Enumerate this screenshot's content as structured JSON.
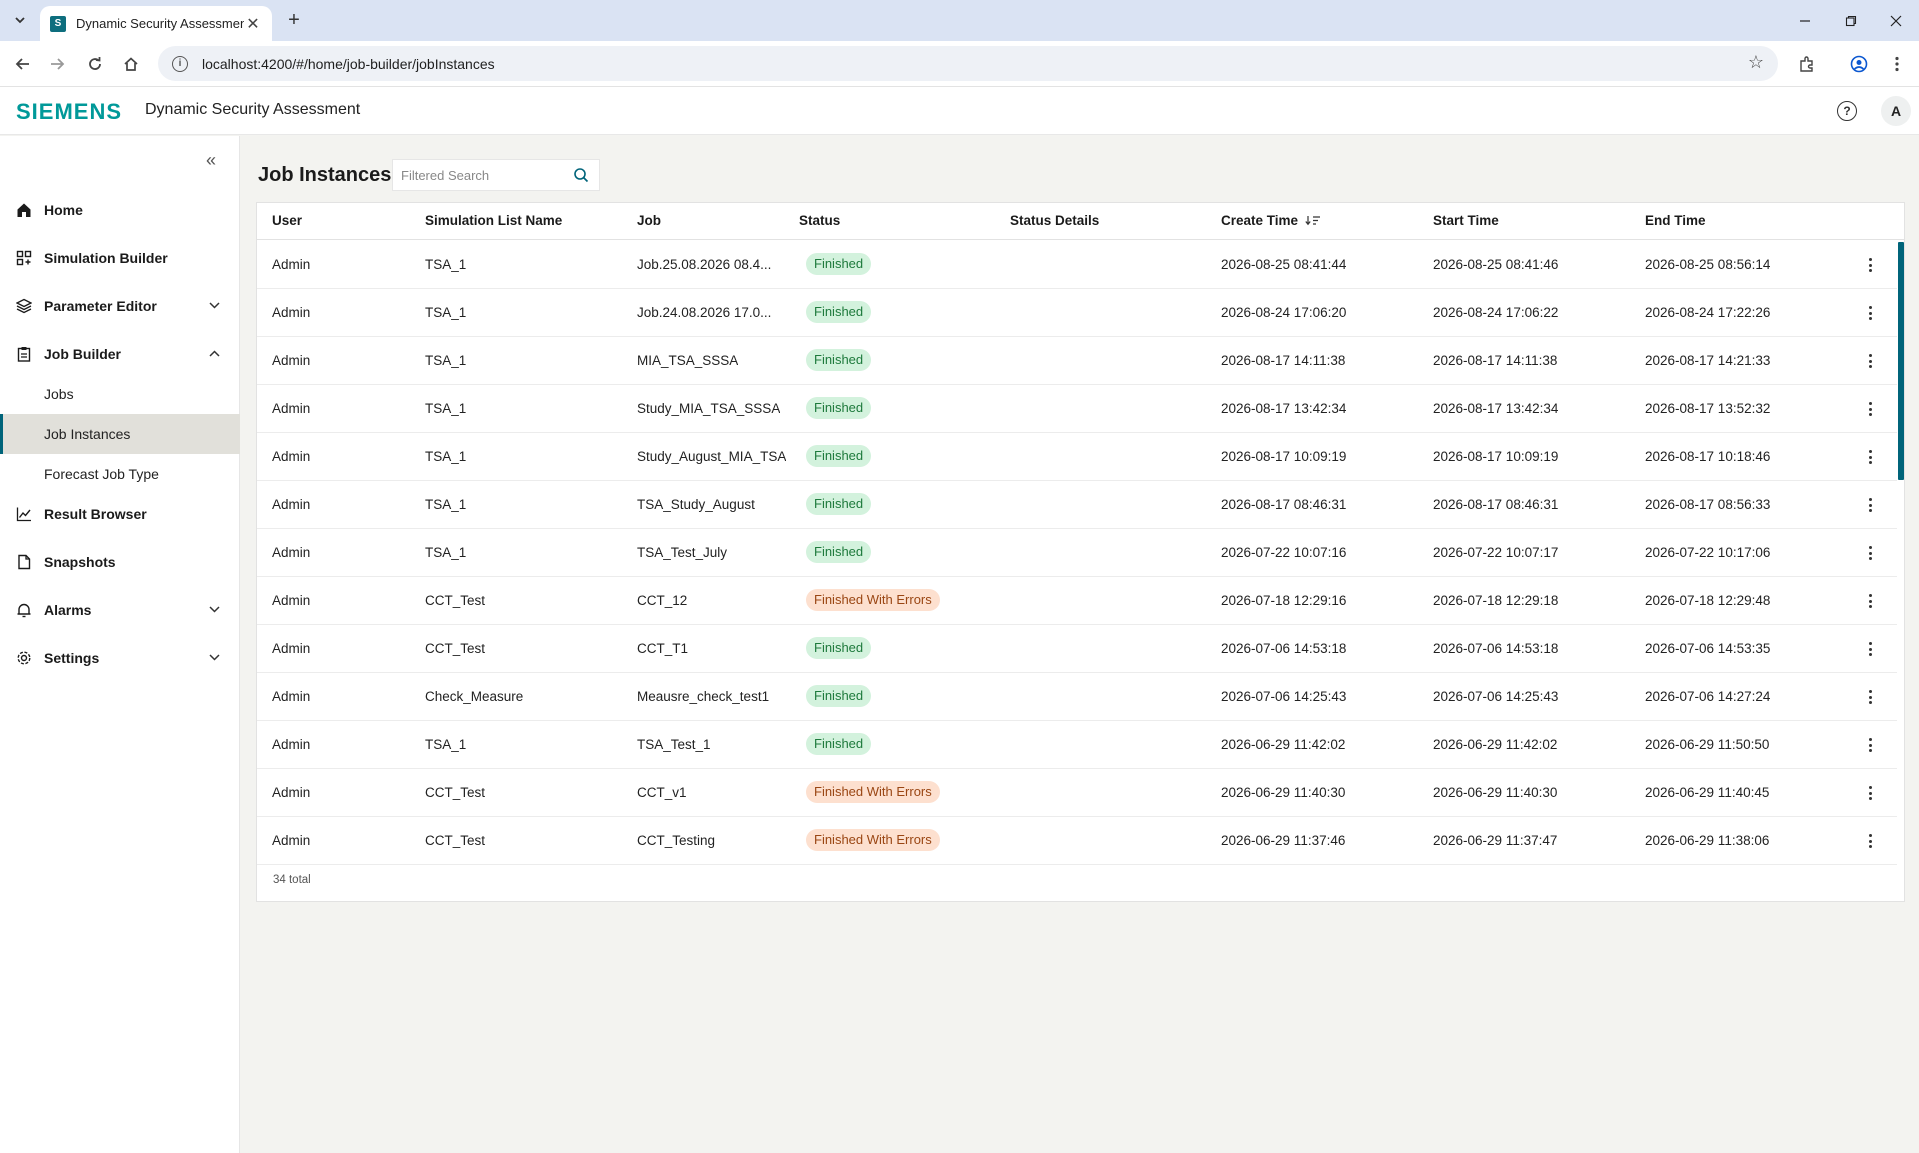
{
  "browser": {
    "tab_title": "Dynamic Security Assessment",
    "url": "localhost:4200/#/home/job-builder/jobInstances"
  },
  "header": {
    "logo": "SIEMENS",
    "app_title": "Dynamic Security Assessment",
    "avatar_initial": "A"
  },
  "sidebar": {
    "items": [
      {
        "label": "Home",
        "icon": "home-icon"
      },
      {
        "label": "Simulation Builder",
        "icon": "grid-icon"
      },
      {
        "label": "Parameter Editor",
        "icon": "layers-icon"
      },
      {
        "label": "Job Builder",
        "icon": "clipboard-icon"
      },
      {
        "label": "Result Browser",
        "icon": "chart-line-icon"
      },
      {
        "label": "Snapshots",
        "icon": "document-icon"
      },
      {
        "label": "Alarms",
        "icon": "bell-icon"
      },
      {
        "label": "Settings",
        "icon": "gear-icon"
      }
    ],
    "job_builder_sub": [
      "Jobs",
      "Job Instances",
      "Forecast Job Type"
    ],
    "active": "Job Instances"
  },
  "main": {
    "title": "Job Instances",
    "search_placeholder": "Filtered Search",
    "columns": [
      "User",
      "Simulation List Name",
      "Job",
      "Status",
      "Status Details",
      "Create Time",
      "Start Time",
      "End Time"
    ],
    "sort_column": "Create Time",
    "sort_direction": "descending",
    "rows": [
      {
        "user": "Admin",
        "sim": "TSA_1",
        "job": "Job.25.08.2026 08.4...",
        "status": "Finished",
        "details": "",
        "create": "2026-08-25 08:41:44",
        "start": "2026-08-25 08:41:46",
        "end": "2026-08-25 08:56:14"
      },
      {
        "user": "Admin",
        "sim": "TSA_1",
        "job": "Job.24.08.2026 17.0...",
        "status": "Finished",
        "details": "",
        "create": "2026-08-24 17:06:20",
        "start": "2026-08-24 17:06:22",
        "end": "2026-08-24 17:22:26"
      },
      {
        "user": "Admin",
        "sim": "TSA_1",
        "job": "MIA_TSA_SSSA",
        "status": "Finished",
        "details": "",
        "create": "2026-08-17 14:11:38",
        "start": "2026-08-17 14:11:38",
        "end": "2026-08-17 14:21:33"
      },
      {
        "user": "Admin",
        "sim": "TSA_1",
        "job": "Study_MIA_TSA_SSSA",
        "status": "Finished",
        "details": "",
        "create": "2026-08-17 13:42:34",
        "start": "2026-08-17 13:42:34",
        "end": "2026-08-17 13:52:32"
      },
      {
        "user": "Admin",
        "sim": "TSA_1",
        "job": "Study_August_MIA_TSA",
        "status": "Finished",
        "details": "",
        "create": "2026-08-17 10:09:19",
        "start": "2026-08-17 10:09:19",
        "end": "2026-08-17 10:18:46"
      },
      {
        "user": "Admin",
        "sim": "TSA_1",
        "job": "TSA_Study_August",
        "status": "Finished",
        "details": "",
        "create": "2026-08-17 08:46:31",
        "start": "2026-08-17 08:46:31",
        "end": "2026-08-17 08:56:33"
      },
      {
        "user": "Admin",
        "sim": "TSA_1",
        "job": "TSA_Test_July",
        "status": "Finished",
        "details": "",
        "create": "2026-07-22 10:07:16",
        "start": "2026-07-22 10:07:17",
        "end": "2026-07-22 10:17:06"
      },
      {
        "user": "Admin",
        "sim": "CCT_Test",
        "job": "CCT_12",
        "status": "Finished With Errors",
        "details": "",
        "create": "2026-07-18 12:29:16",
        "start": "2026-07-18 12:29:18",
        "end": "2026-07-18 12:29:48"
      },
      {
        "user": "Admin",
        "sim": "CCT_Test",
        "job": "CCT_T1",
        "status": "Finished",
        "details": "",
        "create": "2026-07-06 14:53:18",
        "start": "2026-07-06 14:53:18",
        "end": "2026-07-06 14:53:35"
      },
      {
        "user": "Admin",
        "sim": "Check_Measure",
        "job": "Meausre_check_test1",
        "status": "Finished",
        "details": "",
        "create": "2026-07-06 14:25:43",
        "start": "2026-07-06 14:25:43",
        "end": "2026-07-06 14:27:24"
      },
      {
        "user": "Admin",
        "sim": "TSA_1",
        "job": "TSA_Test_1",
        "status": "Finished",
        "details": "",
        "create": "2026-06-29 11:42:02",
        "start": "2026-06-29 11:42:02",
        "end": "2026-06-29 11:50:50"
      },
      {
        "user": "Admin",
        "sim": "CCT_Test",
        "job": "CCT_v1",
        "status": "Finished With Errors",
        "details": "",
        "create": "2026-06-29 11:40:30",
        "start": "2026-06-29 11:40:30",
        "end": "2026-06-29 11:40:45"
      },
      {
        "user": "Admin",
        "sim": "CCT_Test",
        "job": "CCT_Testing",
        "status": "Finished With Errors",
        "details": "",
        "create": "2026-06-29 11:37:46",
        "start": "2026-06-29 11:37:47",
        "end": "2026-06-29 11:38:06"
      }
    ],
    "total": "34 total"
  },
  "colors": {
    "brand": "#009999",
    "accent": "#00647a",
    "finished_bg": "#d3f2dd",
    "finished_fg": "#1e7a3c",
    "errors_bg": "#fde0cf",
    "errors_fg": "#9a4613"
  }
}
